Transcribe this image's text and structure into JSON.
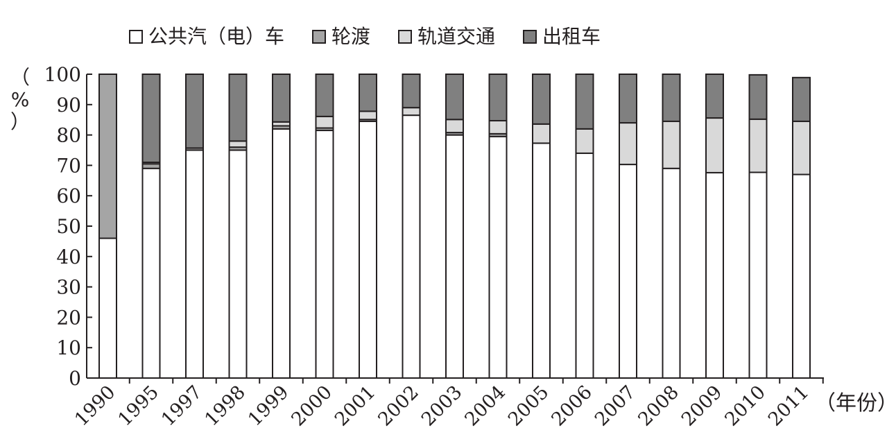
{
  "chart_data": {
    "type": "bar",
    "stacked": true,
    "categories": [
      "1990",
      "1995",
      "1997",
      "1998",
      "1999",
      "2000",
      "2001",
      "2002",
      "2003",
      "2004",
      "2005",
      "2006",
      "2007",
      "2008",
      "2009",
      "2010",
      "2011"
    ],
    "series": [
      {
        "name": "公共汽（电）车",
        "color": "#ffffff",
        "values": [
          46,
          69,
          75,
          75,
          82,
          81.5,
          84.5,
          86.5,
          80,
          79.5,
          77.3,
          74,
          70.3,
          69,
          67.6,
          67.7,
          67
        ]
      },
      {
        "name": "轮渡",
        "color": "#a5a5a5",
        "values": [
          54,
          1.5,
          0.7,
          1.0,
          1.0,
          0.8,
          0.6,
          0,
          0.8,
          0.9,
          0,
          0,
          0,
          0,
          0,
          0,
          0
        ]
      },
      {
        "name": "轨道交通",
        "color": "#d9d9d9",
        "values": [
          0,
          0.5,
          0,
          2.0,
          1.3,
          3.8,
          2.7,
          2.5,
          4.3,
          4.3,
          6.3,
          8.0,
          13.7,
          15.5,
          18.0,
          17.5,
          17.5
        ]
      },
      {
        "name": "出租车",
        "color": "#808080",
        "values": [
          0,
          29,
          24.3,
          22,
          15.7,
          13.9,
          12.2,
          11,
          14.9,
          15.3,
          16.4,
          18.0,
          16.0,
          15.5,
          14.4,
          14.6,
          14.4
        ]
      }
    ],
    "ylim": [
      0,
      100
    ],
    "yticks": [
      0,
      10,
      20,
      30,
      40,
      50,
      60,
      70,
      80,
      90,
      100
    ],
    "ylabel": "（%）",
    "xlabel": "（年份）",
    "legend_position": "top",
    "grid": false
  }
}
